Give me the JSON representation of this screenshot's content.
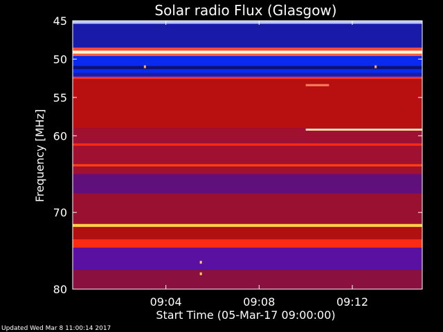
{
  "chart_data": {
    "type": "heatmap",
    "title": "Solar radio Flux (Glasgow)",
    "xlabel": "Start Time (05-Mar-17 09:00:00)",
    "ylabel": "Frequency [MHz]",
    "x_ticks": [
      "09:04",
      "09:08",
      "09:12"
    ],
    "x_tick_minutes": [
      4,
      8,
      12
    ],
    "xlim_minutes": [
      0,
      15
    ],
    "y_ticks": [
      45,
      50,
      55,
      60,
      70,
      80
    ],
    "ylim": [
      45,
      80
    ],
    "y_reversed": true,
    "bands": [
      {
        "from": 45.0,
        "to": 45.4,
        "color": "#b8c8ff"
      },
      {
        "from": 45.4,
        "to": 48.5,
        "color": "#1a1aa8"
      },
      {
        "from": 48.5,
        "to": 48.9,
        "color": "#ff4a3a"
      },
      {
        "from": 48.9,
        "to": 49.3,
        "color": "#ffffd0"
      },
      {
        "from": 49.3,
        "to": 49.6,
        "color": "#ff5a3a"
      },
      {
        "from": 49.6,
        "to": 52.3,
        "color": "#0a2af0"
      },
      {
        "from": 50.9,
        "to": 51.3,
        "color": "#101070"
      },
      {
        "from": 51.8,
        "to": 52.2,
        "color": "#1c1ca0"
      },
      {
        "from": 52.3,
        "to": 52.6,
        "color": "#ff3020"
      },
      {
        "from": 52.6,
        "to": 59.0,
        "color": "#b81010"
      },
      {
        "from": 59.0,
        "to": 65.0,
        "color": "#a01030"
      },
      {
        "from": 61.0,
        "to": 61.3,
        "color": "#ff2a10"
      },
      {
        "from": 63.7,
        "to": 64.0,
        "color": "#ff4010"
      },
      {
        "from": 65.0,
        "to": 67.5,
        "color": "#60107a"
      },
      {
        "from": 67.5,
        "to": 71.5,
        "color": "#9a1030"
      },
      {
        "from": 71.5,
        "to": 71.9,
        "color": "#ffd040"
      },
      {
        "from": 71.9,
        "to": 73.5,
        "color": "#b01010"
      },
      {
        "from": 73.5,
        "to": 74.6,
        "color": "#ff2a10"
      },
      {
        "from": 74.6,
        "to": 77.5,
        "color": "#5a10a0"
      },
      {
        "from": 77.5,
        "to": 80.0,
        "color": "#8a1040"
      }
    ],
    "features": [
      {
        "kind": "segment",
        "freq": 59.2,
        "t_from": 10.0,
        "t_to": 15.0,
        "color": "#ffe0a0"
      },
      {
        "kind": "segment",
        "freq": 53.4,
        "t_from": 10.0,
        "t_to": 11.0,
        "color": "#ff8060"
      },
      {
        "kind": "dot",
        "freq": 51.0,
        "t": 3.1,
        "color": "#ffb060"
      },
      {
        "kind": "dot",
        "freq": 51.0,
        "t": 13.0,
        "color": "#ffb060"
      },
      {
        "kind": "dot",
        "freq": 76.5,
        "t": 5.5,
        "color": "#ffd060"
      },
      {
        "kind": "dot",
        "freq": 78.0,
        "t": 5.5,
        "color": "#ffd060"
      }
    ]
  },
  "footer": {
    "updated": "Updated Wed Mar  8 11:00:14 2017"
  }
}
